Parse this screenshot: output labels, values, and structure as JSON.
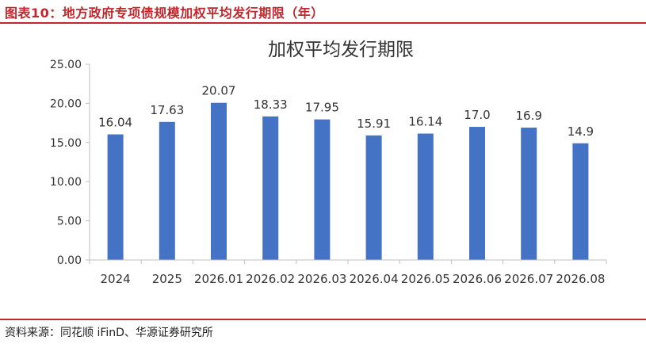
{
  "figure": {
    "title": "图表10：地方政府专项债规模加权平均发行期限（年）",
    "source": "资料来源：同花顺 iFinD、华源证券研究所"
  },
  "colors": {
    "accent": "#c0282d",
    "bar": "#4472c4",
    "axis": "#bfbfbf"
  },
  "chart_data": {
    "type": "bar",
    "title": "加权平均发行期限",
    "xlabel": "",
    "ylabel": "",
    "categories": [
      "2024",
      "2025",
      "2026.01",
      "2026.02",
      "2026.03",
      "2026.04",
      "2026.05",
      "2026.06",
      "2026.07",
      "2026.08"
    ],
    "values": [
      16.04,
      17.63,
      20.07,
      18.33,
      17.95,
      15.91,
      16.14,
      17.0,
      16.9,
      14.9
    ],
    "data_labels": [
      "16.04",
      "17.63",
      "20.07",
      "18.33",
      "17.95",
      "15.91",
      "16.14",
      "17.0",
      "16.9",
      "14.9"
    ],
    "yticks": [
      "0.00",
      "5.00",
      "10.00",
      "15.00",
      "20.00",
      "25.00"
    ],
    "ylim": [
      0,
      25
    ],
    "grid": false,
    "legend": "none"
  }
}
